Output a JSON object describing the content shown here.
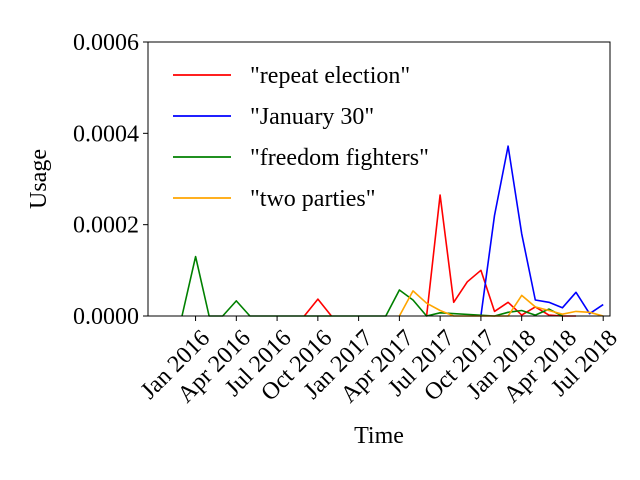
{
  "chart_data": {
    "type": "line",
    "title": "",
    "xlabel": "Time",
    "ylabel": "Usage",
    "ylim": [
      0,
      0.0006
    ],
    "yticks": [
      "0.0000",
      "0.0002",
      "0.0004",
      "0.0006"
    ],
    "ytick_values": [
      0,
      0.0002,
      0.0004,
      0.0006
    ],
    "xlim": [
      "2015-10",
      "2018-08"
    ],
    "xticks": [
      "Jan 2016",
      "Apr 2016",
      "Jul 2016",
      "Oct 2016",
      "Jan 2017",
      "Apr 2017",
      "Jul 2017",
      "Oct 2017",
      "Jan 2018",
      "Apr 2018",
      "Jul 2018"
    ],
    "xtick_values": [
      "2016-01",
      "2016-04",
      "2016-07",
      "2016-10",
      "2017-01",
      "2017-04",
      "2017-07",
      "2017-10",
      "2018-01",
      "2018-04",
      "2018-07"
    ],
    "legend_position": "top-left",
    "grid": false,
    "series": [
      {
        "name": "\"repeat election\"",
        "color": "#ff0000",
        "x": [
          "2017-06",
          "2017-07",
          "2017-08",
          "2017-09",
          "2017-10",
          "2017-11",
          "2017-12",
          "2018-01",
          "2018-02",
          "2018-03",
          "2018-04",
          "2018-05"
        ],
        "y": [
          0,
          0.000265,
          3e-05,
          7.5e-05,
          0.0001,
          1e-05,
          3e-05,
          2e-06,
          2e-05,
          2e-06,
          0,
          0
        ],
        "extra_x": [
          "2016-09",
          "2016-10",
          "2016-11"
        ],
        "extra_y": [
          0,
          3.7e-05,
          0
        ]
      },
      {
        "name": "\"January 30\"",
        "color": "#0000ff",
        "x": [
          "2017-10",
          "2017-11",
          "2017-12",
          "2018-01",
          "2018-02",
          "2018-03",
          "2018-04",
          "2018-05",
          "2018-06",
          "2018-07"
        ],
        "y": [
          0,
          0.00022,
          0.000372,
          0.00018,
          3.5e-05,
          3e-05,
          1.8e-05,
          5.2e-05,
          5e-06,
          2.5e-05
        ]
      },
      {
        "name": "\"freedom fighters\"",
        "color": "#008000",
        "x": [
          "2015-12",
          "2016-01",
          "2016-02",
          "2016-03",
          "2016-04",
          "2016-05",
          "2017-03",
          "2017-04",
          "2017-05",
          "2017-06",
          "2017-07",
          "2017-11",
          "2017-12",
          "2018-01",
          "2018-02",
          "2018-03",
          "2018-04"
        ],
        "y": [
          0,
          0.00013,
          0,
          0,
          3.3e-05,
          0,
          0,
          5.7e-05,
          3.5e-05,
          0,
          7e-06,
          0,
          8e-06,
          1.2e-05,
          2e-06,
          1.5e-05,
          0
        ]
      },
      {
        "name": "\"two parties\"",
        "color": "#ffa500",
        "x": [
          "2017-04",
          "2017-05",
          "2017-06",
          "2017-07",
          "2017-08",
          "2017-11",
          "2017-12",
          "2018-01",
          "2018-02",
          "2018-03",
          "2018-04",
          "2018-05",
          "2018-06",
          "2018-07"
        ],
        "y": [
          0,
          5.5e-05,
          2.8e-05,
          1.2e-05,
          0,
          0,
          0,
          4.5e-05,
          2e-05,
          1.2e-05,
          4e-06,
          1e-05,
          8e-06,
          0
        ]
      }
    ]
  }
}
